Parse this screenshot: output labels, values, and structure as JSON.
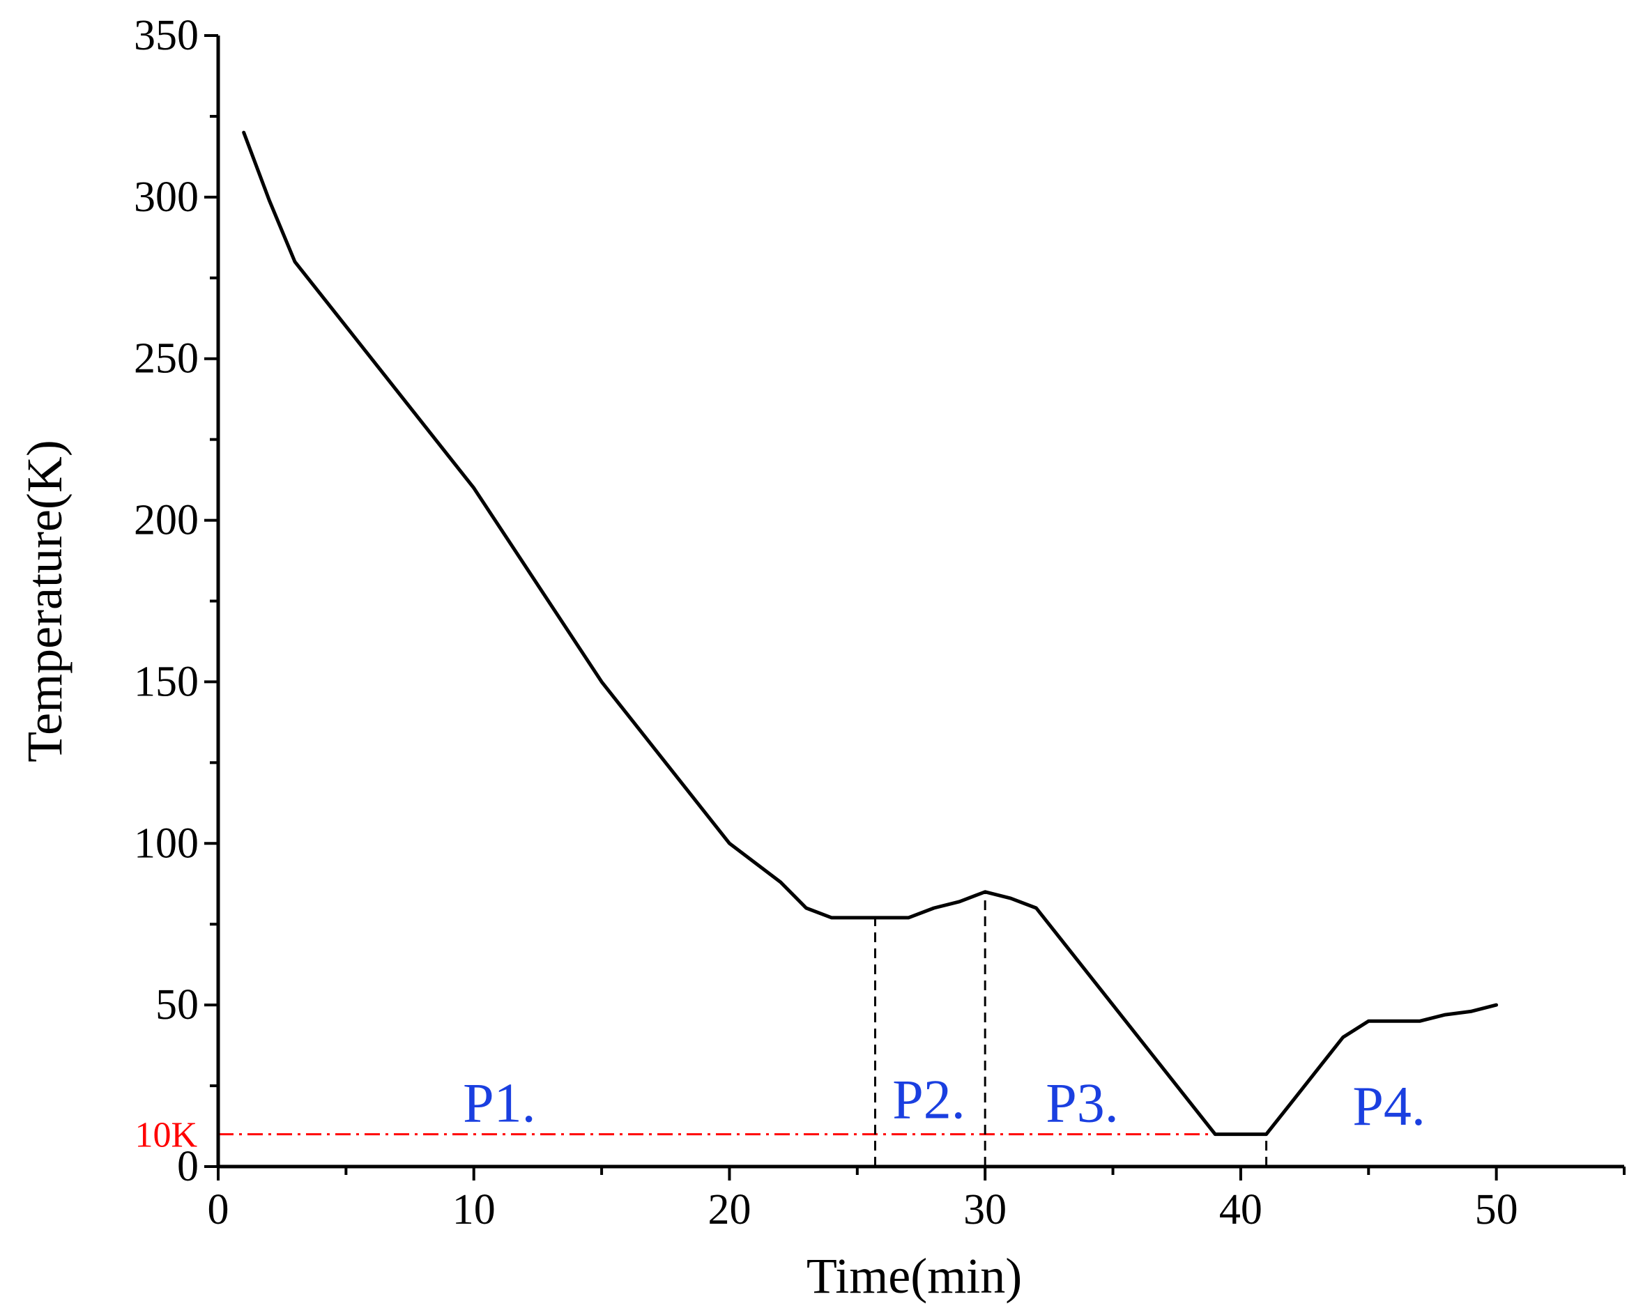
{
  "chart_data": {
    "type": "line",
    "xlabel": "Time(min)",
    "ylabel": "Temperature(K)",
    "xlim": [
      0,
      55
    ],
    "ylim": [
      0,
      350
    ],
    "xticks": [
      0,
      10,
      20,
      30,
      40,
      50
    ],
    "yticks": [
      0,
      50,
      100,
      150,
      200,
      250,
      300,
      350
    ],
    "xtick_labels": [
      "0",
      "10",
      "20",
      "30",
      "40",
      "50"
    ],
    "ytick_labels": [
      "0",
      "50",
      "100",
      "150",
      "200",
      "250",
      "300",
      "350"
    ],
    "series": [
      {
        "name": "Temperature",
        "color": "#000000",
        "x": [
          1,
          2,
          3,
          5,
          7,
          10,
          15,
          20,
          22,
          23,
          24,
          25,
          26,
          27,
          28,
          29,
          30,
          31,
          32,
          35,
          38,
          39,
          40,
          41,
          42,
          43,
          44,
          45,
          46,
          47,
          48,
          49,
          50
        ],
        "y": [
          320,
          299,
          280,
          260,
          240,
          210,
          150,
          100,
          88,
          80,
          77,
          77,
          77,
          77,
          80,
          82,
          85,
          83,
          80,
          50,
          20,
          10,
          10,
          10,
          20,
          30,
          40,
          45,
          45,
          45,
          47,
          48,
          50
        ]
      }
    ],
    "reference_line": {
      "y": 10,
      "x_range": [
        0,
        39
      ],
      "label": "10K",
      "color": "#ff0000"
    },
    "phase_dividers": [
      {
        "x": 25.7,
        "y_top": 77
      },
      {
        "x": 30,
        "y_top": 85
      },
      {
        "x": 41,
        "y_top": 10
      }
    ],
    "phase_labels": [
      {
        "text": "P1.",
        "x": 11,
        "y": 20
      },
      {
        "text": "P2.",
        "x": 27.8,
        "y": 21
      },
      {
        "text": "P3.",
        "x": 33.8,
        "y": 20
      },
      {
        "text": "P4.",
        "x": 45.8,
        "y": 19
      }
    ],
    "phase_label_color": "#1a3fe0"
  }
}
